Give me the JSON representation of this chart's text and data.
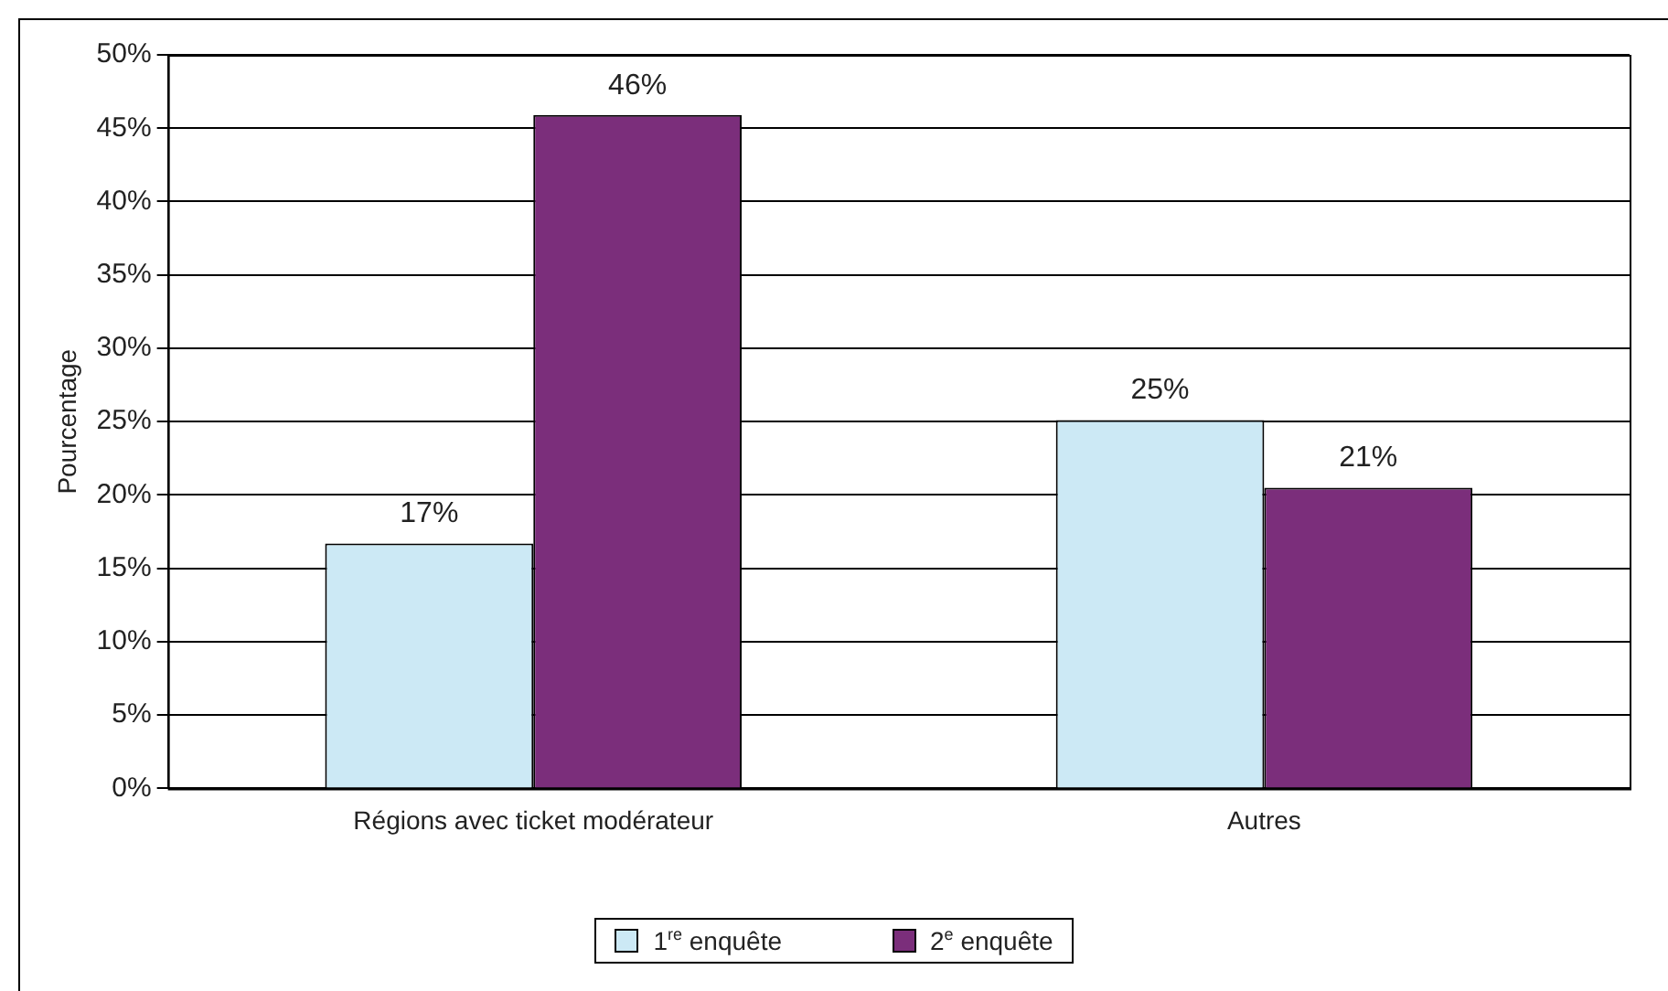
{
  "chart_data": {
    "type": "bar",
    "ylabel": "Pourcentage",
    "categories": [
      "Régions avec ticket modérateur",
      "Autres"
    ],
    "series": [
      {
        "name": "1$^{re}$ enquête",
        "color": "#cce9f5",
        "values": [
          16.7,
          25.1
        ],
        "value_labels": [
          "17%",
          "25%"
        ]
      },
      {
        "name": "2$^{e}$ enquête",
        "color": "#7b2e7b",
        "values": [
          45.9,
          20.5
        ],
        "value_labels": [
          "46%",
          "21%"
        ]
      }
    ],
    "ylim": [
      0,
      50
    ],
    "yticks": [
      {
        "value": 0,
        "label": "0%"
      },
      {
        "value": 5,
        "label": "5%"
      },
      {
        "value": 10,
        "label": "10%"
      },
      {
        "value": 15,
        "label": "15%"
      },
      {
        "value": 20,
        "label": "20%"
      },
      {
        "value": 25,
        "label": "25%"
      },
      {
        "value": 30,
        "label": "30%"
      },
      {
        "value": 35,
        "label": "35%"
      },
      {
        "value": 40,
        "label": "40%"
      },
      {
        "value": 45,
        "label": "45%"
      },
      {
        "value": 50,
        "label": "50%"
      }
    ],
    "grid": "y",
    "legend": "bottom"
  }
}
